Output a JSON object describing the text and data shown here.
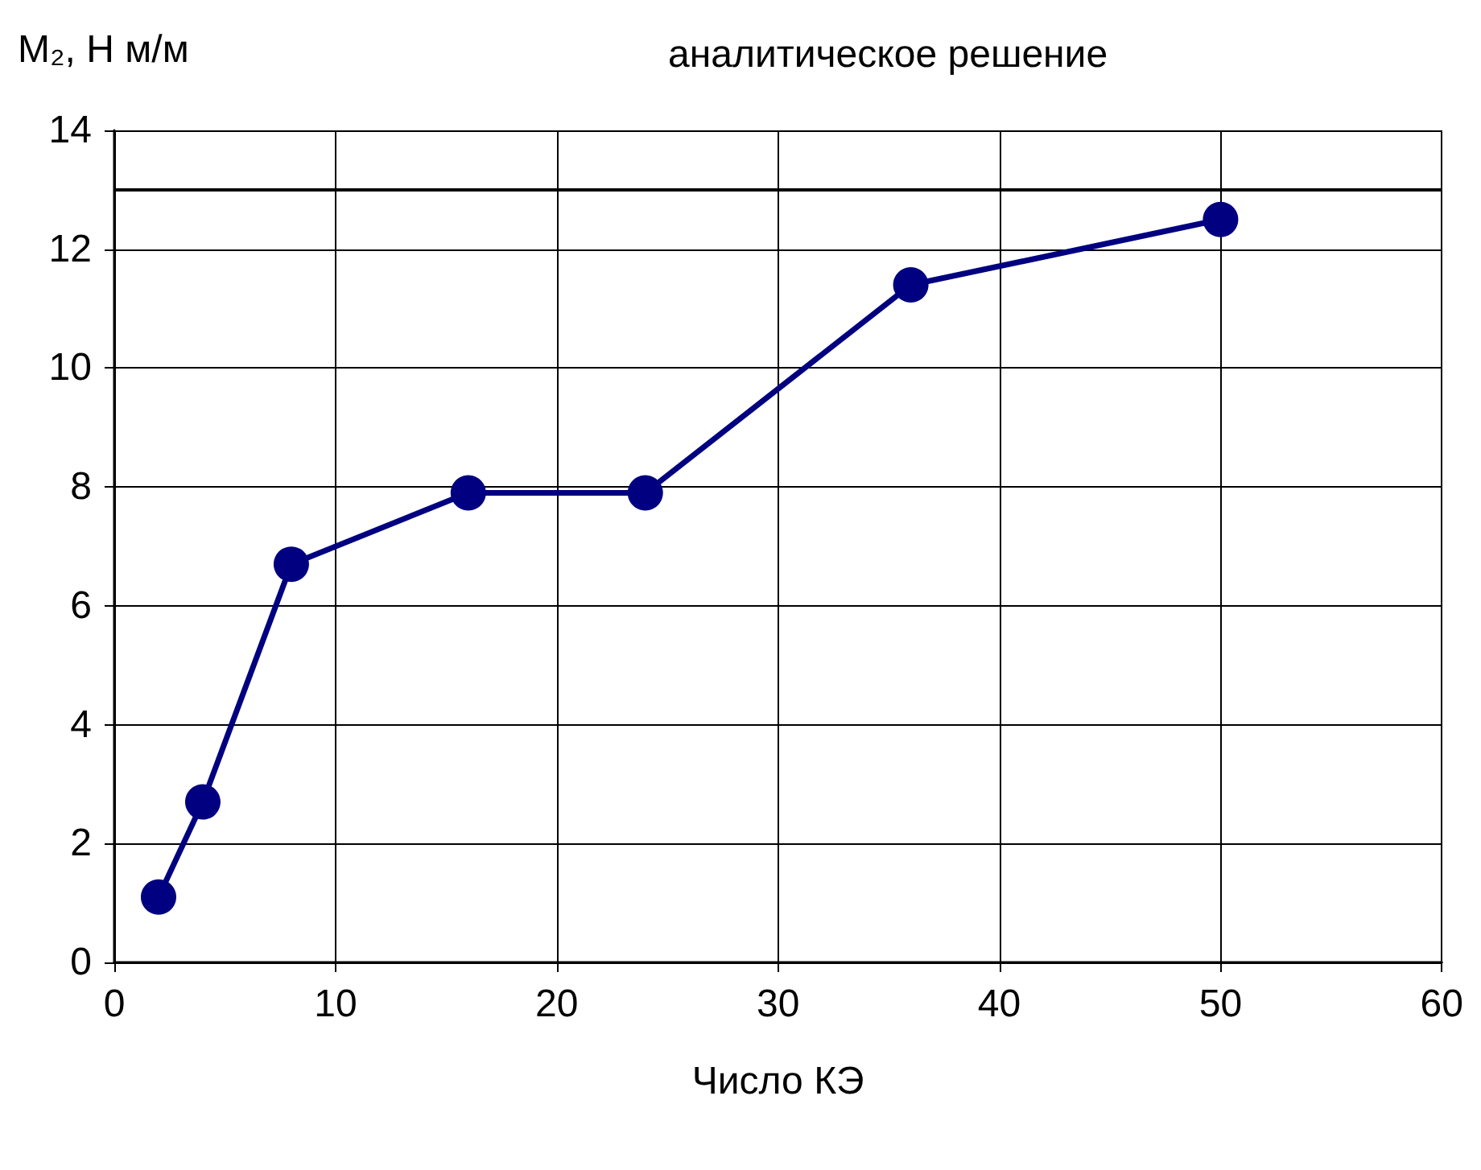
{
  "chart_data": {
    "type": "line",
    "xlabel": "Число КЭ",
    "ylabel": "M₂, Н м/м",
    "x": [
      2,
      4,
      8,
      16,
      24,
      36,
      50
    ],
    "series": [
      {
        "color": "#000080",
        "values": [
          1.1,
          2.7,
          6.7,
          7.9,
          7.9,
          11.4,
          12.5
        ]
      }
    ],
    "xlim": [
      0,
      60
    ],
    "xticks": [
      0,
      10,
      20,
      30,
      40,
      50,
      60
    ],
    "ylim": [
      0,
      14
    ],
    "yticks": [
      0,
      2,
      4,
      6,
      8,
      10,
      12,
      14
    ],
    "ref_lines": [
      {
        "axis": "y",
        "value": 13,
        "label": "аналитическое решение",
        "color": "#000000"
      }
    ],
    "grid": true,
    "marker": "circle",
    "line_style": "solid"
  }
}
